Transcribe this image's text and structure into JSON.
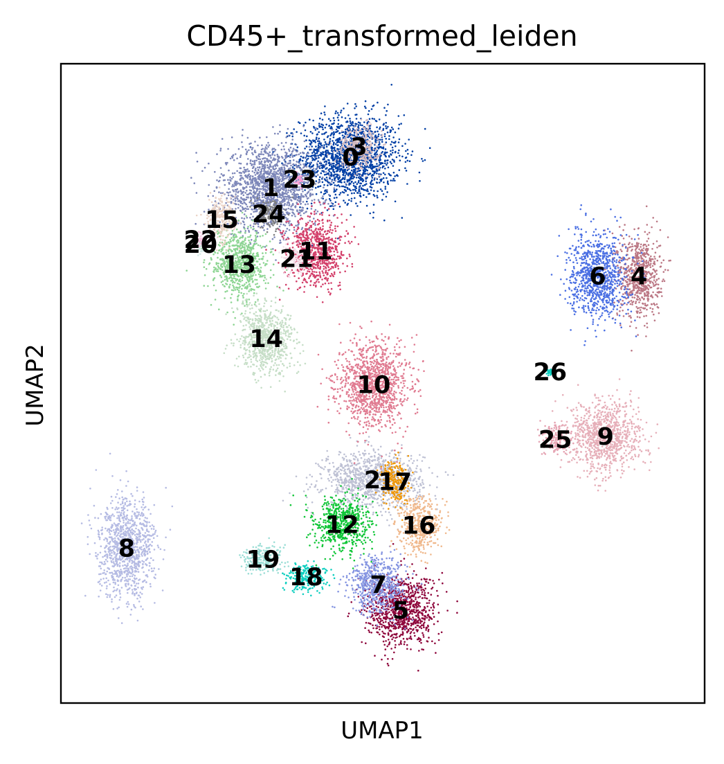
{
  "chart_data": {
    "type": "scatter",
    "title": "CD45+_transformed_leiden",
    "xlabel": "UMAP1",
    "ylabel": "UMAP2",
    "x_ticks": false,
    "y_ticks": false,
    "grid": false,
    "legend": "on data",
    "xlim": [
      0,
      100
    ],
    "ylim": [
      0,
      100
    ],
    "clusters": [
      {
        "name": "0",
        "x": 45.0,
        "y": 85.4,
        "color": "#023fa5",
        "spread": [
          7,
          6
        ]
      },
      {
        "name": "1",
        "x": 32.6,
        "y": 80.6,
        "color": "#7d87b9",
        "spread": [
          7,
          6
        ]
      },
      {
        "name": "2",
        "x": 48.4,
        "y": 34.9,
        "color": "#bec1d4",
        "spread": [
          7,
          4
        ]
      },
      {
        "name": "3",
        "x": 46.3,
        "y": 87.0,
        "color": "#d6bcc0",
        "spread": [
          3,
          3
        ]
      },
      {
        "name": "4",
        "x": 89.8,
        "y": 66.8,
        "color": "#bb7784",
        "spread": [
          3,
          6
        ]
      },
      {
        "name": "5",
        "x": 52.8,
        "y": 14.5,
        "color": "#8e063b",
        "spread": [
          5,
          5
        ]
      },
      {
        "name": "6",
        "x": 83.4,
        "y": 66.8,
        "color": "#4a6fe3",
        "spread": [
          4,
          6
        ]
      },
      {
        "name": "7",
        "x": 49.3,
        "y": 18.5,
        "color": "#8595e1",
        "spread": [
          4,
          4
        ]
      },
      {
        "name": "8",
        "x": 10.2,
        "y": 24.2,
        "color": "#b5bbe3",
        "spread": [
          4,
          7
        ]
      },
      {
        "name": "9",
        "x": 84.6,
        "y": 41.7,
        "color": "#e6afb9",
        "spread": [
          5,
          5
        ]
      },
      {
        "name": "10",
        "x": 48.6,
        "y": 49.8,
        "color": "#e07b91",
        "spread": [
          5,
          6
        ]
      },
      {
        "name": "11",
        "x": 39.6,
        "y": 70.7,
        "color": "#d33f6a",
        "spread": [
          4,
          5
        ]
      },
      {
        "name": "12",
        "x": 43.7,
        "y": 27.9,
        "color": "#11c638",
        "spread": [
          4,
          4
        ]
      },
      {
        "name": "13",
        "x": 27.7,
        "y": 68.6,
        "color": "#8dd593",
        "spread": [
          4,
          5
        ]
      },
      {
        "name": "14",
        "x": 31.9,
        "y": 57.0,
        "color": "#c6dec7",
        "spread": [
          4,
          5
        ]
      },
      {
        "name": "15",
        "x": 25.0,
        "y": 75.6,
        "color": "#ead3c6",
        "spread": [
          2,
          3
        ]
      },
      {
        "name": "16",
        "x": 55.6,
        "y": 27.8,
        "color": "#f0b98d",
        "spread": [
          3,
          4
        ]
      },
      {
        "name": "17",
        "x": 51.9,
        "y": 34.6,
        "color": "#ef9708",
        "spread": [
          2,
          3
        ]
      },
      {
        "name": "18",
        "x": 38.1,
        "y": 19.7,
        "color": "#0fcfc0",
        "spread": [
          3,
          2
        ]
      },
      {
        "name": "19",
        "x": 31.4,
        "y": 22.5,
        "color": "#9cded6",
        "spread": [
          3,
          2
        ]
      },
      {
        "name": "20",
        "x": 21.7,
        "y": 71.7,
        "color": "#d5eae7",
        "spread": [
          1,
          1.5
        ]
      },
      {
        "name": "21",
        "x": 36.6,
        "y": 69.5,
        "color": "#f3e1eb",
        "spread": [
          2,
          2
        ]
      },
      {
        "name": "22",
        "x": 21.7,
        "y": 72.5,
        "color": "#f6c4e1",
        "spread": [
          1,
          1
        ]
      },
      {
        "name": "23",
        "x": 37.1,
        "y": 81.9,
        "color": "#f79cd4",
        "spread": [
          1,
          1
        ]
      },
      {
        "name": "24",
        "x": 32.3,
        "y": 76.5,
        "color": "#7f7f7f",
        "spread": [
          2,
          2
        ]
      },
      {
        "name": "25",
        "x": 76.8,
        "y": 41.2,
        "color": "#e5a3b2",
        "spread": [
          2,
          2
        ]
      },
      {
        "name": "26",
        "x": 76.0,
        "y": 51.8,
        "color": "#0fcfc0",
        "spread": [
          0.5,
          0.5
        ]
      }
    ]
  }
}
